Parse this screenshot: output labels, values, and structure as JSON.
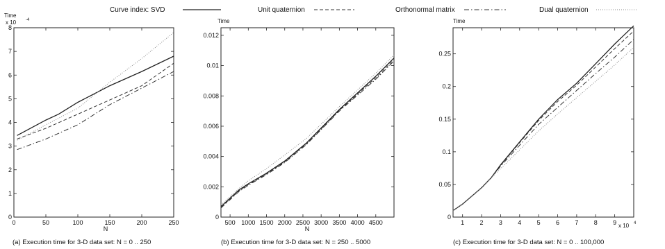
{
  "legend": {
    "placement": "top",
    "items": [
      {
        "label": "Curve index: SVD",
        "style": "solid"
      },
      {
        "label": "Unit quaternion",
        "style": "dashed"
      },
      {
        "label": "Orthonormal matrix",
        "style": "dashdot"
      },
      {
        "label": "Dual quaternion",
        "style": "dotted"
      }
    ]
  },
  "chart_data": [
    {
      "type": "line",
      "caption": "(a) Execution time for 3-D data set: N = 0 .. 250",
      "xlabel": "N",
      "ylabel": "Time",
      "y_multiplier": "x 10",
      "y_exponent": "-4",
      "xlim": [
        0,
        250
      ],
      "ylim": [
        0,
        8
      ],
      "xticks": [
        0,
        50,
        100,
        150,
        200,
        250
      ],
      "xtick_labels": [
        "0",
        "50",
        "100",
        "150",
        "200",
        "250"
      ],
      "yticks": [
        0,
        1,
        2,
        3,
        4,
        5,
        6,
        7,
        8
      ],
      "ytick_labels": [
        "0",
        "1",
        "2",
        "3",
        "4",
        "5",
        "6",
        "7",
        "8"
      ],
      "grid": false,
      "series": [
        {
          "style": "solid",
          "x": [
            5,
            50,
            70,
            100,
            150,
            200,
            250
          ],
          "values": [
            3.45,
            4.1,
            4.35,
            4.85,
            5.55,
            6.15,
            6.8
          ]
        },
        {
          "style": "dashed",
          "x": [
            5,
            50,
            100,
            150,
            200,
            250
          ],
          "values": [
            3.3,
            3.75,
            4.35,
            4.95,
            5.55,
            6.5
          ]
        },
        {
          "style": "dashdot",
          "x": [
            5,
            50,
            100,
            150,
            200,
            250
          ],
          "values": [
            2.85,
            3.3,
            3.9,
            4.75,
            5.45,
            6.15
          ]
        },
        {
          "style": "dotted",
          "x": [
            5,
            50,
            100,
            150,
            200,
            250
          ],
          "values": [
            3.25,
            3.9,
            4.6,
            5.7,
            6.7,
            7.8
          ]
        }
      ]
    },
    {
      "type": "line",
      "caption": "(b) Execution time for 3-D data set: N = 250 .. 5000",
      "xlabel": "N",
      "ylabel": "Time",
      "xlim": [
        250,
        5000
      ],
      "ylim": [
        0,
        0.0125
      ],
      "xticks": [
        500,
        1000,
        1500,
        2000,
        2500,
        3000,
        3500,
        4000,
        4500
      ],
      "xtick_labels": [
        "500",
        "1000",
        "1500",
        "2000",
        "2500",
        "3000",
        "3500",
        "4000",
        "4500"
      ],
      "yticks": [
        0,
        0.002,
        0.004,
        0.006,
        0.008,
        0.01,
        0.012
      ],
      "ytick_labels": [
        "0",
        "0.002",
        "0.004",
        "0.006",
        "0.008",
        "0.01",
        "0.012"
      ],
      "grid": false,
      "series": [
        {
          "style": "solid",
          "x": [
            250,
            750,
            1000,
            1500,
            2000,
            2600,
            3500,
            4500,
            5000
          ],
          "values": [
            0.0007,
            0.0018,
            0.0022,
            0.0029,
            0.0037,
            0.0049,
            0.0071,
            0.0093,
            0.0105
          ]
        },
        {
          "style": "dashed",
          "x": [
            250,
            750,
            1000,
            1500,
            2000,
            2600,
            3500,
            4500,
            5000
          ],
          "values": [
            0.00065,
            0.00175,
            0.00215,
            0.00285,
            0.00365,
            0.00485,
            0.00705,
            0.0092,
            0.0104
          ]
        },
        {
          "style": "dashdot",
          "x": [
            250,
            750,
            1000,
            1500,
            2000,
            2600,
            3500,
            4500,
            5000
          ],
          "values": [
            0.0006,
            0.0017,
            0.0021,
            0.0028,
            0.0036,
            0.0048,
            0.007,
            0.0091,
            0.0103
          ]
        },
        {
          "style": "dotted",
          "x": [
            250,
            750,
            1000,
            1500,
            2000,
            2600,
            3500,
            4500,
            5000
          ],
          "values": [
            0.0008,
            0.0019,
            0.0024,
            0.0032,
            0.0041,
            0.0052,
            0.0073,
            0.0095,
            0.0107
          ]
        }
      ]
    },
    {
      "type": "line",
      "caption": "(c) Execution time for 3-D data set: N = 0 .. 100,000",
      "xlabel": "",
      "ylabel": "Time",
      "x_multiplier": "x 10",
      "x_exponent": "4",
      "xlim": [
        0.5,
        10
      ],
      "ylim": [
        0,
        0.29
      ],
      "xticks": [
        1,
        2,
        3,
        4,
        5,
        6,
        7,
        8,
        9
      ],
      "xtick_labels": [
        "1",
        "2",
        "3",
        "4",
        "5",
        "6",
        "7",
        "8",
        "9"
      ],
      "yticks": [
        0,
        0.05,
        0.1,
        0.15,
        0.2,
        0.25
      ],
      "ytick_labels": [
        "0",
        "0.05",
        "0.1",
        "0.15",
        "0.2",
        "0.25"
      ],
      "grid": false,
      "series": [
        {
          "style": "solid",
          "x": [
            0.5,
            1,
            2,
            2.5,
            3,
            4,
            5,
            6,
            7,
            8,
            9,
            10
          ],
          "values": [
            0.01,
            0.02,
            0.045,
            0.06,
            0.08,
            0.115,
            0.15,
            0.18,
            0.205,
            0.235,
            0.265,
            0.293
          ]
        },
        {
          "style": "dashed",
          "x": [
            0.5,
            1,
            2,
            2.5,
            3,
            4,
            5,
            6,
            7,
            8,
            9,
            10
          ],
          "values": [
            0.01,
            0.02,
            0.045,
            0.06,
            0.079,
            0.114,
            0.148,
            0.177,
            0.202,
            0.23,
            0.258,
            0.285
          ]
        },
        {
          "style": "dashdot",
          "x": [
            0.5,
            1,
            2,
            2.5,
            3,
            4,
            5,
            6,
            7,
            8,
            9,
            10
          ],
          "values": [
            0.01,
            0.02,
            0.045,
            0.06,
            0.078,
            0.11,
            0.142,
            0.168,
            0.194,
            0.22,
            0.245,
            0.272
          ]
        },
        {
          "style": "dotted",
          "x": [
            0.5,
            1,
            2,
            2.5,
            3,
            4,
            5,
            6,
            7,
            8,
            9,
            10
          ],
          "values": [
            0.01,
            0.02,
            0.045,
            0.06,
            0.074,
            0.103,
            0.132,
            0.158,
            0.183,
            0.208,
            0.233,
            0.26
          ]
        }
      ]
    }
  ]
}
